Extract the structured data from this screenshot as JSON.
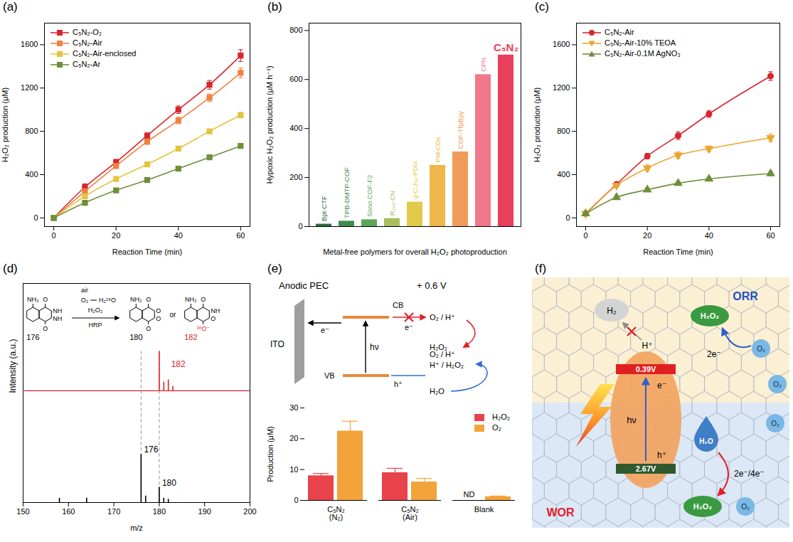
{
  "chart_data": [
    {
      "panel": "(a)",
      "type": "line",
      "xlabel": "Reaction Time (min)",
      "ylabel": "H₂O₂ production (μM)",
      "x": [
        0,
        10,
        20,
        30,
        40,
        50,
        60
      ],
      "series": [
        {
          "name": "C₅N₂-O₂",
          "color": "#d9262e",
          "marker": "square",
          "values": [
            0,
            285,
            515,
            760,
            1000,
            1230,
            1500
          ],
          "errors": [
            0,
            30,
            25,
            25,
            35,
            40,
            55
          ]
        },
        {
          "name": "C₅N₂-Air",
          "color": "#ee8240",
          "marker": "square",
          "values": [
            0,
            245,
            480,
            705,
            900,
            1110,
            1340
          ],
          "errors": [
            0,
            20,
            20,
            25,
            30,
            35,
            45
          ]
        },
        {
          "name": "C₅N₂-Air-enclosed",
          "color": "#e6c33e",
          "marker": "square",
          "values": [
            0,
            200,
            360,
            495,
            640,
            800,
            950
          ],
          "errors": [
            0,
            15,
            15,
            15,
            20,
            20,
            25
          ]
        },
        {
          "name": "C₅N₂-Ar",
          "color": "#6f8f3a",
          "marker": "square",
          "values": [
            0,
            140,
            255,
            350,
            455,
            560,
            665
          ],
          "errors": [
            0,
            10,
            10,
            10,
            15,
            20,
            20
          ]
        }
      ],
      "xlim": [
        -3,
        63
      ],
      "xticks": [
        0,
        20,
        40,
        60
      ],
      "ylim": [
        -80,
        1800
      ],
      "yticks": [
        0,
        400,
        800,
        1200,
        1600
      ],
      "legend": "top-left",
      "line_style": "solid"
    },
    {
      "panel": "(b)",
      "type": "bar",
      "xlabel": "Metal-free polymers for overall H₂O₂ photoproduction",
      "ylabel": "Hypoxic H₂O₂ production (μM h⁻¹)",
      "categories": [
        "Bpt-CTF",
        "TPB-DMTP-COF",
        "Sono COF-F2",
        "R₂₉₅-CN",
        "g-C₃N₄-PDIx",
        "PM-CDs",
        "COF-TfpBpy",
        "CPN",
        "C₅N₂"
      ],
      "values": [
        10,
        22,
        28,
        33,
        100,
        250,
        305,
        620,
        700
      ],
      "colors": [
        "#2f6b3f",
        "#3f8c4b",
        "#5aa95c",
        "#a9bf5e",
        "#e3c94a",
        "#efb64b",
        "#f19b5a",
        "#f0788a",
        "#e83f5b"
      ],
      "ylim": [
        0,
        830
      ],
      "yticks": [
        0,
        200,
        400,
        600,
        800
      ],
      "tick_labels": "y"
    },
    {
      "panel": "(c)",
      "type": "line",
      "xlabel": "Reaction Time (min)",
      "ylabel": "H₂O₂ production (μM)",
      "x": [
        0,
        10,
        20,
        30,
        40,
        60
      ],
      "series": [
        {
          "name": "C₅N₂-Air",
          "color": "#d9262e",
          "marker": "circle",
          "values": [
            40,
            310,
            570,
            760,
            960,
            1310
          ],
          "errors": [
            10,
            20,
            25,
            35,
            30,
            40
          ]
        },
        {
          "name": "C₅N₂-Air-10% TEOA",
          "color": "#eaa62e",
          "marker": "triangle-down",
          "values": [
            40,
            300,
            460,
            580,
            640,
            740
          ],
          "errors": [
            10,
            15,
            30,
            30,
            25,
            35
          ]
        },
        {
          "name": "C₅N₂-Air-0.1M AgNO₃",
          "color": "#6f8f3a",
          "marker": "triangle",
          "values": [
            40,
            190,
            260,
            320,
            360,
            410
          ],
          "errors": [
            10,
            15,
            15,
            20,
            15,
            20
          ]
        }
      ],
      "xlim": [
        -3,
        63
      ],
      "xticks": [
        0,
        20,
        40,
        60
      ],
      "ylim": [
        -80,
        1800
      ],
      "yticks": [
        0,
        400,
        800,
        1200,
        1600
      ],
      "legend": "top-left",
      "line_style": "solid"
    },
    {
      "panel": "(d)",
      "type": "spectrum",
      "xlabel": "m/z",
      "ylabel": "Intensity (a.u.)",
      "series": [
        {
          "color": "#000000",
          "baseline": 0,
          "x": [
            158,
            164,
            176,
            177,
            180,
            181,
            182
          ],
          "values": [
            2,
            2,
            22,
            3,
            7,
            2,
            1.5
          ]
        },
        {
          "color": "#e0202a",
          "baseline": 51,
          "x": [
            180,
            181,
            182,
            183
          ],
          "values": [
            69,
            55,
            56,
            53
          ]
        }
      ],
      "annotations": [
        {
          "text": "176",
          "x": 176,
          "y": 24,
          "color": "#000000"
        },
        {
          "text": "180",
          "x": 180,
          "y": 9,
          "color": "#000000"
        },
        {
          "text": "182",
          "x": 182,
          "y": 63,
          "color": "#e0202a"
        }
      ],
      "reference_lines": {
        "x": [
          176,
          180
        ],
        "line_style": "dashed"
      },
      "xlim": [
        150,
        200
      ],
      "xticks": [
        150,
        160,
        170,
        180,
        190,
        200
      ],
      "ylim": [
        0,
        100
      ],
      "tick_labels": "x"
    },
    {
      "type": "bar",
      "ylabel": "Production (μM)",
      "categories": [
        "C₅N₂ (N₂)",
        "C₅N₂ (Air)",
        "Blank"
      ],
      "series": [
        {
          "name": "H₂O₂",
          "color": "#e8434b",
          "values": [
            8,
            9,
            null
          ],
          "errors": [
            0.7,
            1.4,
            null
          ]
        },
        {
          "name": "O₂",
          "color": "#f2a33a",
          "values": [
            22.5,
            6,
            1.2
          ],
          "errors": [
            3.2,
            1.1,
            0.2
          ]
        }
      ],
      "annotations": [
        {
          "text": "ND",
          "x": "Blank"
        }
      ],
      "ylim": [
        0,
        30
      ],
      "yticks": [
        0,
        10,
        20,
        30
      ],
      "legend": "top-right"
    }
  ],
  "diagrams": {
    "d_inset": {
      "above_arrow_top": "air",
      "oxidant": "O₂",
      "labeled_water": "H₂¹⁸O",
      "peroxide": "H₂O₂",
      "below_arrow": "HRP",
      "connector": "or",
      "amine": "NH₂",
      "molecules": [
        {
          "label": "176",
          "atoms": [
            "O",
            "NH",
            "NH",
            "O"
          ],
          "color": "#000000"
        },
        {
          "label": "180",
          "atoms": [
            "O",
            "O",
            "O",
            "O"
          ],
          "color": "#000000"
        },
        {
          "label": "182",
          "atoms": [
            "O",
            "NH",
            "O",
            "¹⁸O⁻"
          ],
          "color": "#e0202a"
        }
      ]
    },
    "e_scheme": {
      "panel": "(e)",
      "title": "Anodic PEC",
      "bias": "+ 0.6 V",
      "electrode": "ITO",
      "cb": "CB",
      "vb": "VB",
      "photon": "hν",
      "electron": "e⁻",
      "hole": "h⁺",
      "orr_reactants": "O₂ / H⁺",
      "orr_product": "H₂O₂",
      "wor_products": [
        "O₂ / H⁺",
        "H⁺ / H₂O₂"
      ],
      "wor_reactant": "H₂O"
    },
    "f_scheme": {
      "panel": "(f)",
      "orr": "ORR",
      "wor": "WOR",
      "cb_potential": "0.39V",
      "vb_potential": "2.67V",
      "photon": "hν",
      "electron": "e⁻",
      "hole": "h⁺",
      "proton": "H⁺",
      "hydrogen": "H₂",
      "orr_electrons": "2e⁻",
      "wor_electrons": "2e⁻/4e⁻",
      "peroxide": "H₂O₂",
      "oxygen": "O₂",
      "water": "H₂O"
    }
  }
}
